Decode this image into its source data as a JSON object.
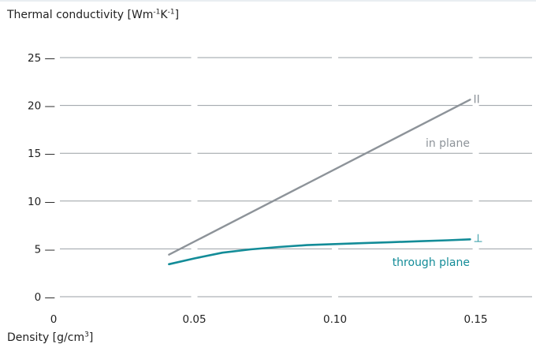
{
  "chart_data": {
    "type": "line",
    "ylabel_prefix": "Thermal conductivity [Wm",
    "ylabel_sup1": "-1",
    "ylabel_mid": "K",
    "ylabel_sup2": "-1",
    "ylabel_suffix": "]",
    "xlabel_prefix": "Density [g/cm",
    "xlabel_sup": "3",
    "xlabel_suffix": "]",
    "xlim": [
      0,
      0.17
    ],
    "ylim": [
      0,
      25
    ],
    "x_ticks": [
      0,
      0.05,
      0.1,
      0.15
    ],
    "x_tick_labels": [
      "0",
      "0.05",
      "0.10",
      "0.15"
    ],
    "y_ticks": [
      0,
      5,
      10,
      15,
      20,
      25
    ],
    "y_tick_labels": [
      "0 —",
      "5 —",
      "10 —",
      "15 —",
      "20 —",
      "25 —"
    ],
    "grid": true,
    "series": [
      {
        "name": "in plane",
        "symbol": "II",
        "color": "#8d9399",
        "x": [
          0.041,
          0.148
        ],
        "y": [
          4.4,
          20.6
        ]
      },
      {
        "name": "through plane",
        "symbol": "⊥",
        "color": "#138c98",
        "x": [
          0.041,
          0.05,
          0.06,
          0.07,
          0.08,
          0.09,
          0.1,
          0.11,
          0.12,
          0.13,
          0.14,
          0.148
        ],
        "y": [
          3.4,
          4.0,
          4.6,
          4.95,
          5.2,
          5.4,
          5.5,
          5.6,
          5.7,
          5.8,
          5.9,
          6.0
        ]
      }
    ]
  }
}
